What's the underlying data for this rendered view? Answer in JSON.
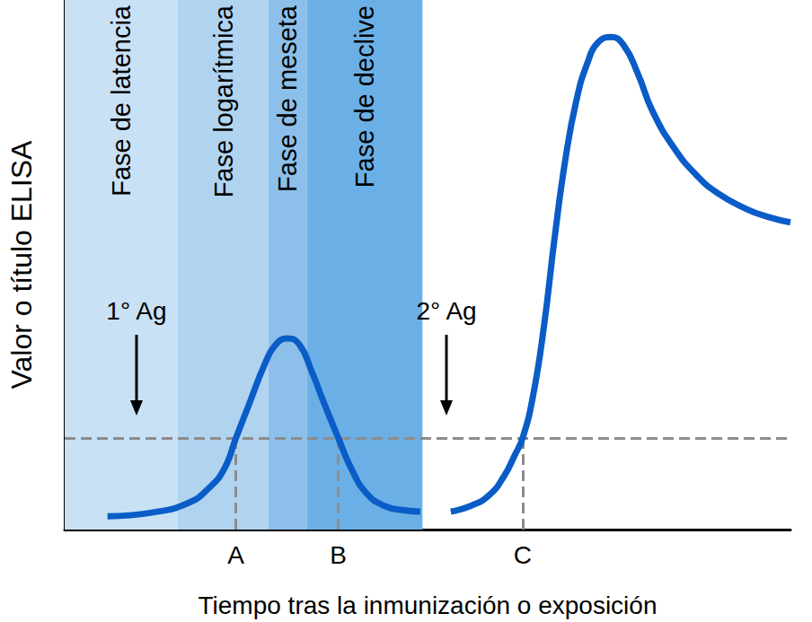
{
  "chart_data": {
    "type": "line",
    "x_label": "Tiempo tras la inmunización o exposición",
    "y_label": "Valor o título ELISA",
    "xlim": [
      0,
      100
    ],
    "ylim": [
      0,
      100
    ],
    "xticks": [],
    "yticks": [],
    "tick_labels": false,
    "grid": false,
    "series": [
      {
        "color": "#0a5cc7",
        "x": [
          5.9,
          12,
          17,
          20,
          22,
          23.6,
          25.5,
          27.5,
          29,
          30.7,
          32.3,
          34,
          35.7,
          37.7,
          39.5,
          41.5,
          44,
          47,
          49
        ],
        "values": [
          2.5,
          3.2,
          5,
          8,
          11.5,
          17.3,
          24,
          31,
          34.8,
          36.1,
          35,
          30,
          24,
          17.3,
          11.5,
          7,
          4.5,
          3.6,
          3.4
        ]
      },
      {
        "color": "#0a5cc7",
        "x": [
          53.2,
          56,
          58.5,
          60.5,
          62,
          63.1,
          64.5,
          66,
          67.5,
          69,
          70.5,
          72,
          73.5,
          75.3,
          77,
          79,
          81,
          84,
          87,
          90,
          94,
          97,
          100
        ],
        "values": [
          3.4,
          4.5,
          6.5,
          10,
          14,
          17.3,
          25,
          38,
          55,
          70,
          81,
          88,
          92,
          93,
          91.5,
          86,
          79,
          72,
          67,
          63.5,
          60.5,
          59,
          58
        ]
      }
    ],
    "phases": [
      {
        "label": "Fase de latencia",
        "x": [
          0,
          15.6
        ],
        "color": "#c9e1f5"
      },
      {
        "label": "Fase logarítmica",
        "x": [
          15.6,
          28.1
        ],
        "color": "#b0d3f0"
      },
      {
        "label": "Fase de meseta",
        "x": [
          28.1,
          33.4
        ],
        "color": "#8cc0ea"
      },
      {
        "label": "Fase de declive",
        "x": [
          33.4,
          49.3
        ],
        "color": "#6ab0e6"
      }
    ],
    "antigens": [
      {
        "label": "1° Ag",
        "x": 9.9
      },
      {
        "label": "2° Ag",
        "x": 52.6
      }
    ],
    "threshold": 17.3,
    "threshold_crossings": [
      {
        "label": "A",
        "x": 23.6
      },
      {
        "label": "B",
        "x": 37.7
      },
      {
        "label": "C",
        "x": 63.1
      }
    ]
  }
}
